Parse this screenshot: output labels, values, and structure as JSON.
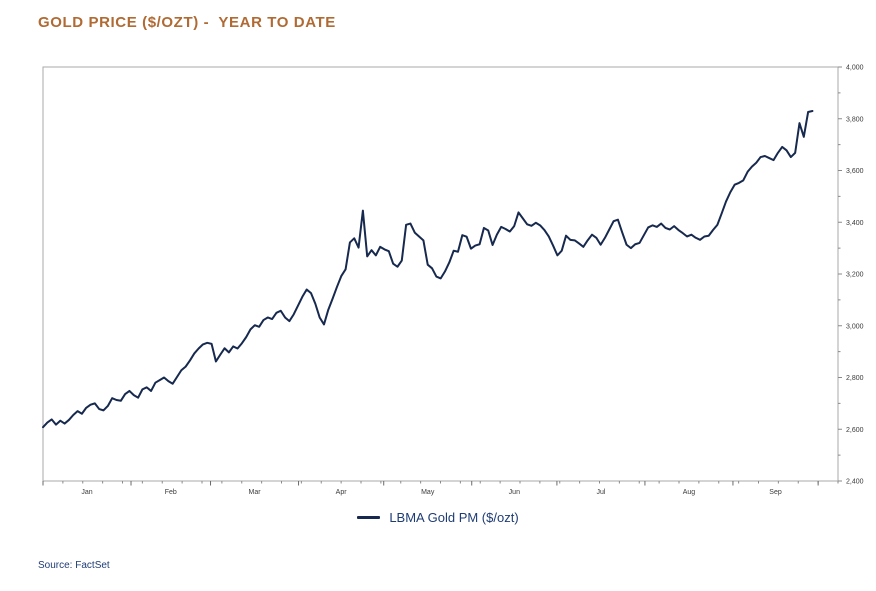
{
  "title": "GOLD PRICE ($/OZT) -  YEAR TO DATE",
  "legend": {
    "label": "LBMA Gold PM ($/ozt)"
  },
  "source": "Source: FactSet",
  "colors": {
    "title": "#b06a33",
    "line": "#17294e",
    "legend_text": "#1e3c74",
    "source_text": "#1e3c74",
    "plot_border": "#a8a8a8",
    "tick": "#8a8a8a",
    "tick_label": "#3a3a3a"
  },
  "chart_data": {
    "type": "line",
    "title": "GOLD PRICE ($/OZT) - YEAR TO DATE",
    "xlabel": "",
    "ylabel": "",
    "x_months": [
      "Jan",
      "Feb",
      "Mar",
      "Apr",
      "May",
      "Jun",
      "Jul",
      "Aug",
      "Sep"
    ],
    "month_start_days": [
      0,
      31,
      59,
      90,
      120,
      151,
      181,
      212,
      243,
      273
    ],
    "x_domain_days": 280,
    "data_span_days": 271,
    "ylim": [
      2400,
      4000
    ],
    "y_tick_step": 200,
    "y_minor_step": 100,
    "x_minor_tick_days": 7,
    "grid": false,
    "legend_position": "bottom-center",
    "series": [
      {
        "name": "LBMA Gold PM ($/ozt)",
        "values": [
          2608,
          2626,
          2638,
          2618,
          2633,
          2622,
          2636,
          2655,
          2670,
          2660,
          2683,
          2695,
          2700,
          2678,
          2673,
          2690,
          2720,
          2713,
          2710,
          2736,
          2748,
          2732,
          2722,
          2754,
          2762,
          2748,
          2780,
          2790,
          2800,
          2786,
          2776,
          2802,
          2828,
          2842,
          2866,
          2893,
          2912,
          2928,
          2934,
          2930,
          2862,
          2888,
          2913,
          2897,
          2920,
          2912,
          2932,
          2956,
          2986,
          3002,
          2996,
          3022,
          3032,
          3026,
          3050,
          3058,
          3032,
          3018,
          3044,
          3078,
          3112,
          3140,
          3126,
          3085,
          3032,
          3005,
          3062,
          3105,
          3150,
          3192,
          3218,
          3322,
          3338,
          3302,
          3445,
          3268,
          3292,
          3272,
          3305,
          3295,
          3288,
          3240,
          3228,
          3252,
          3390,
          3395,
          3360,
          3345,
          3330,
          3236,
          3222,
          3190,
          3183,
          3210,
          3245,
          3290,
          3286,
          3350,
          3344,
          3298,
          3310,
          3315,
          3378,
          3368,
          3312,
          3352,
          3382,
          3374,
          3364,
          3385,
          3438,
          3415,
          3392,
          3386,
          3398,
          3388,
          3370,
          3345,
          3310,
          3272,
          3290,
          3348,
          3332,
          3330,
          3318,
          3305,
          3330,
          3352,
          3340,
          3313,
          3340,
          3372,
          3404,
          3410,
          3360,
          3313,
          3300,
          3315,
          3320,
          3350,
          3380,
          3388,
          3382,
          3395,
          3378,
          3372,
          3385,
          3370,
          3358,
          3345,
          3352,
          3340,
          3332,
          3345,
          3348,
          3370,
          3390,
          3434,
          3480,
          3516,
          3545,
          3552,
          3562,
          3595,
          3615,
          3630,
          3652,
          3656,
          3648,
          3640,
          3668,
          3691,
          3678,
          3652,
          3668,
          3783,
          3730,
          3826,
          3830
        ]
      }
    ]
  }
}
